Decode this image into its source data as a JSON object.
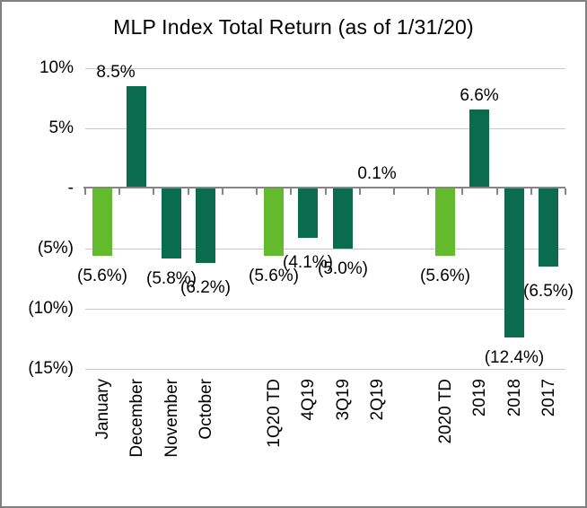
{
  "title": "MLP Index Total Return (as of 1/31/20)",
  "chart_data": {
    "type": "bar",
    "title": "MLP Index Total Return (as of 1/31/20)",
    "categories": [
      "January",
      "December",
      "November",
      "October",
      "1Q20 TD",
      "4Q19",
      "3Q19",
      "2Q19",
      "2020 TD",
      "2019",
      "2018",
      "2017"
    ],
    "values": [
      -5.6,
      8.5,
      -5.8,
      -6.2,
      -5.6,
      -4.1,
      -5.0,
      0.1,
      -5.6,
      6.6,
      -12.4,
      -6.5
    ],
    "xlabel": "",
    "ylabel": "",
    "ylim": [
      -15.5,
      10.5
    ],
    "grid": true,
    "legend": "none",
    "negative_format": "parentheses",
    "y_ticks": [
      {
        "value": 10,
        "label": "10%"
      },
      {
        "value": 5,
        "label": "5%"
      },
      {
        "value": 0,
        "label": "-"
      },
      {
        "value": -5,
        "label": "(5%)"
      },
      {
        "value": -10,
        "label": "(10%)"
      },
      {
        "value": -15,
        "label": "(15%)"
      }
    ],
    "points": [
      {
        "category": "January",
        "value": -5.6,
        "label": "(5.6%)",
        "color": "light"
      },
      {
        "category": "December",
        "value": 8.5,
        "label": "8.5%",
        "color": "dark",
        "label_dx": -23
      },
      {
        "category": "November",
        "value": -5.8,
        "label": "(5.8%)",
        "color": "dark"
      },
      {
        "category": "October",
        "value": -6.2,
        "label": "(6.2%)",
        "color": "dark",
        "label_dy": 5
      },
      {
        "category": "",
        "value": null
      },
      {
        "category": "1Q20 TD",
        "value": -5.6,
        "label": "(5.6%)",
        "color": "light"
      },
      {
        "category": "4Q19",
        "value": -4.1,
        "label": "(4.1%)",
        "color": "dark",
        "label_dy": 5
      },
      {
        "category": "3Q19",
        "value": -5.0,
        "label": "(5.0%)",
        "color": "dark"
      },
      {
        "category": "2Q19",
        "value": 0.1,
        "label": "0.1%",
        "color": "dark"
      },
      {
        "category": "",
        "value": null
      },
      {
        "category": "2020 TD",
        "value": -5.6,
        "label": "(5.6%)",
        "color": "light"
      },
      {
        "category": "2019",
        "value": 6.6,
        "label": "6.6%",
        "color": "dark"
      },
      {
        "category": "2018",
        "value": -12.4,
        "label": "(12.4%)",
        "color": "dark"
      },
      {
        "category": "2017",
        "value": -6.5,
        "label": "(6.5%)",
        "color": "dark",
        "label_dy": 5
      }
    ],
    "colors": {
      "dark": "#0A6B4D",
      "light": "#63BA2D",
      "grid": "#C8C8C8",
      "axis": "#858585",
      "text": "#000000",
      "border": "#808080"
    }
  }
}
